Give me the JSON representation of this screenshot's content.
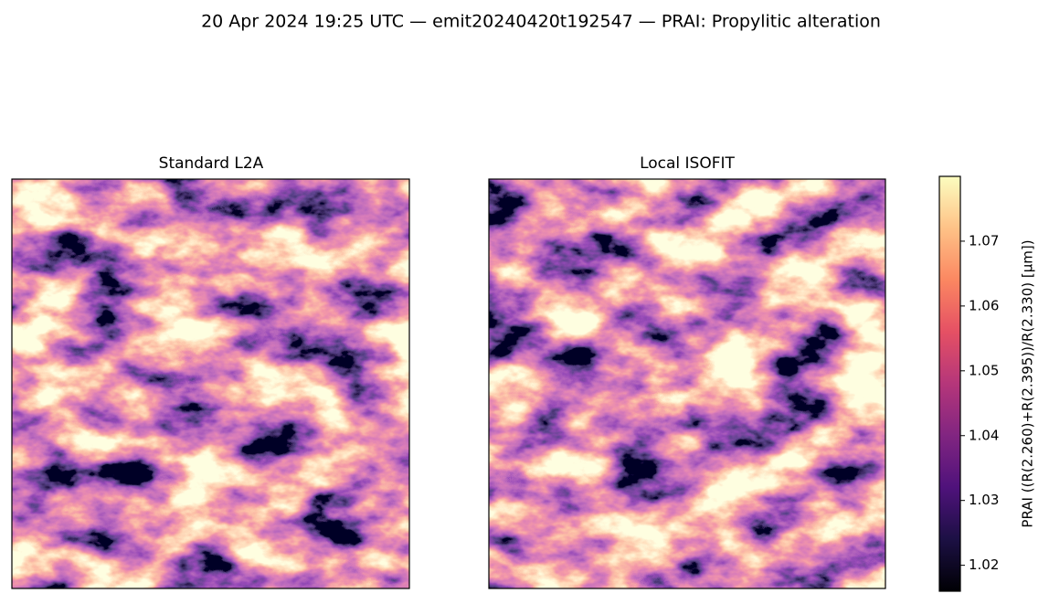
{
  "chart_data": {
    "type": "image",
    "title": "20 Apr 2024 19:25 UTC — emit20240420t192547 — PRAI: Propylitic alteration",
    "panels": [
      {
        "title": "Standard L2A"
      },
      {
        "title": "Local ISOFIT"
      }
    ],
    "colorbar": {
      "label": "PRAI  ((R(2.260)+R(2.395))/R(2.330)  [µm])",
      "colormap": "magma",
      "ylim": [
        1.016,
        1.08
      ],
      "yticks": [
        1.02,
        1.03,
        1.04,
        1.05,
        1.06,
        1.07
      ]
    }
  }
}
